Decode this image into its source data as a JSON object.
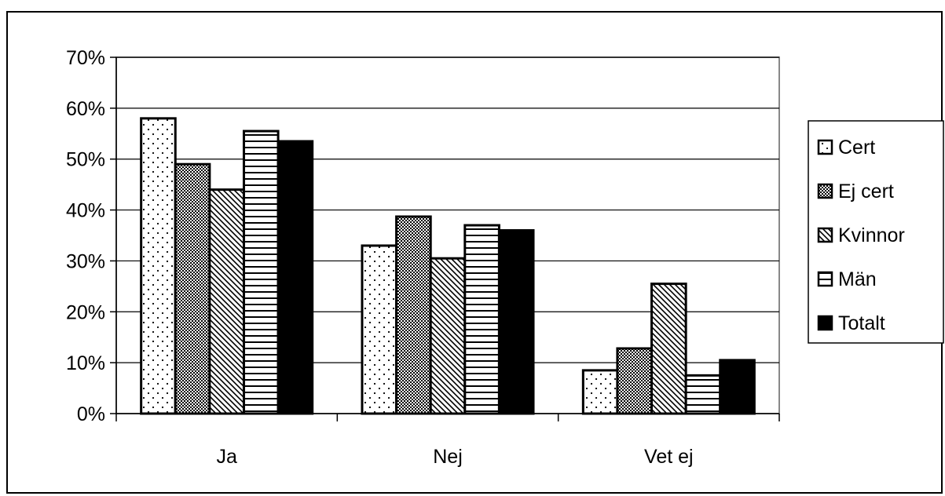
{
  "chart_data": {
    "type": "bar",
    "categories": [
      "Ja",
      "Nej",
      "Vet ej"
    ],
    "series": [
      {
        "name": "Cert",
        "pattern": "dots",
        "values": [
          58,
          33,
          8.5
        ]
      },
      {
        "name": "Ej cert",
        "pattern": "checker",
        "values": [
          49,
          38.7,
          12.8
        ]
      },
      {
        "name": "Kvinnor",
        "pattern": "diagonal",
        "values": [
          44,
          30.5,
          25.5
        ]
      },
      {
        "name": "Män",
        "pattern": "horizontal",
        "values": [
          55.5,
          37,
          7.5
        ]
      },
      {
        "name": "Totalt",
        "pattern": "solid",
        "values": [
          53.5,
          36,
          10.5
        ]
      }
    ],
    "yticks": [
      "0%",
      "10%",
      "20%",
      "30%",
      "40%",
      "50%",
      "60%",
      "70%"
    ],
    "ylim": [
      0,
      70
    ],
    "grid": true,
    "legend_position": "right",
    "colors": {
      "bar_stroke": "#000000",
      "grid": "#000000",
      "background": "#ffffff"
    }
  }
}
